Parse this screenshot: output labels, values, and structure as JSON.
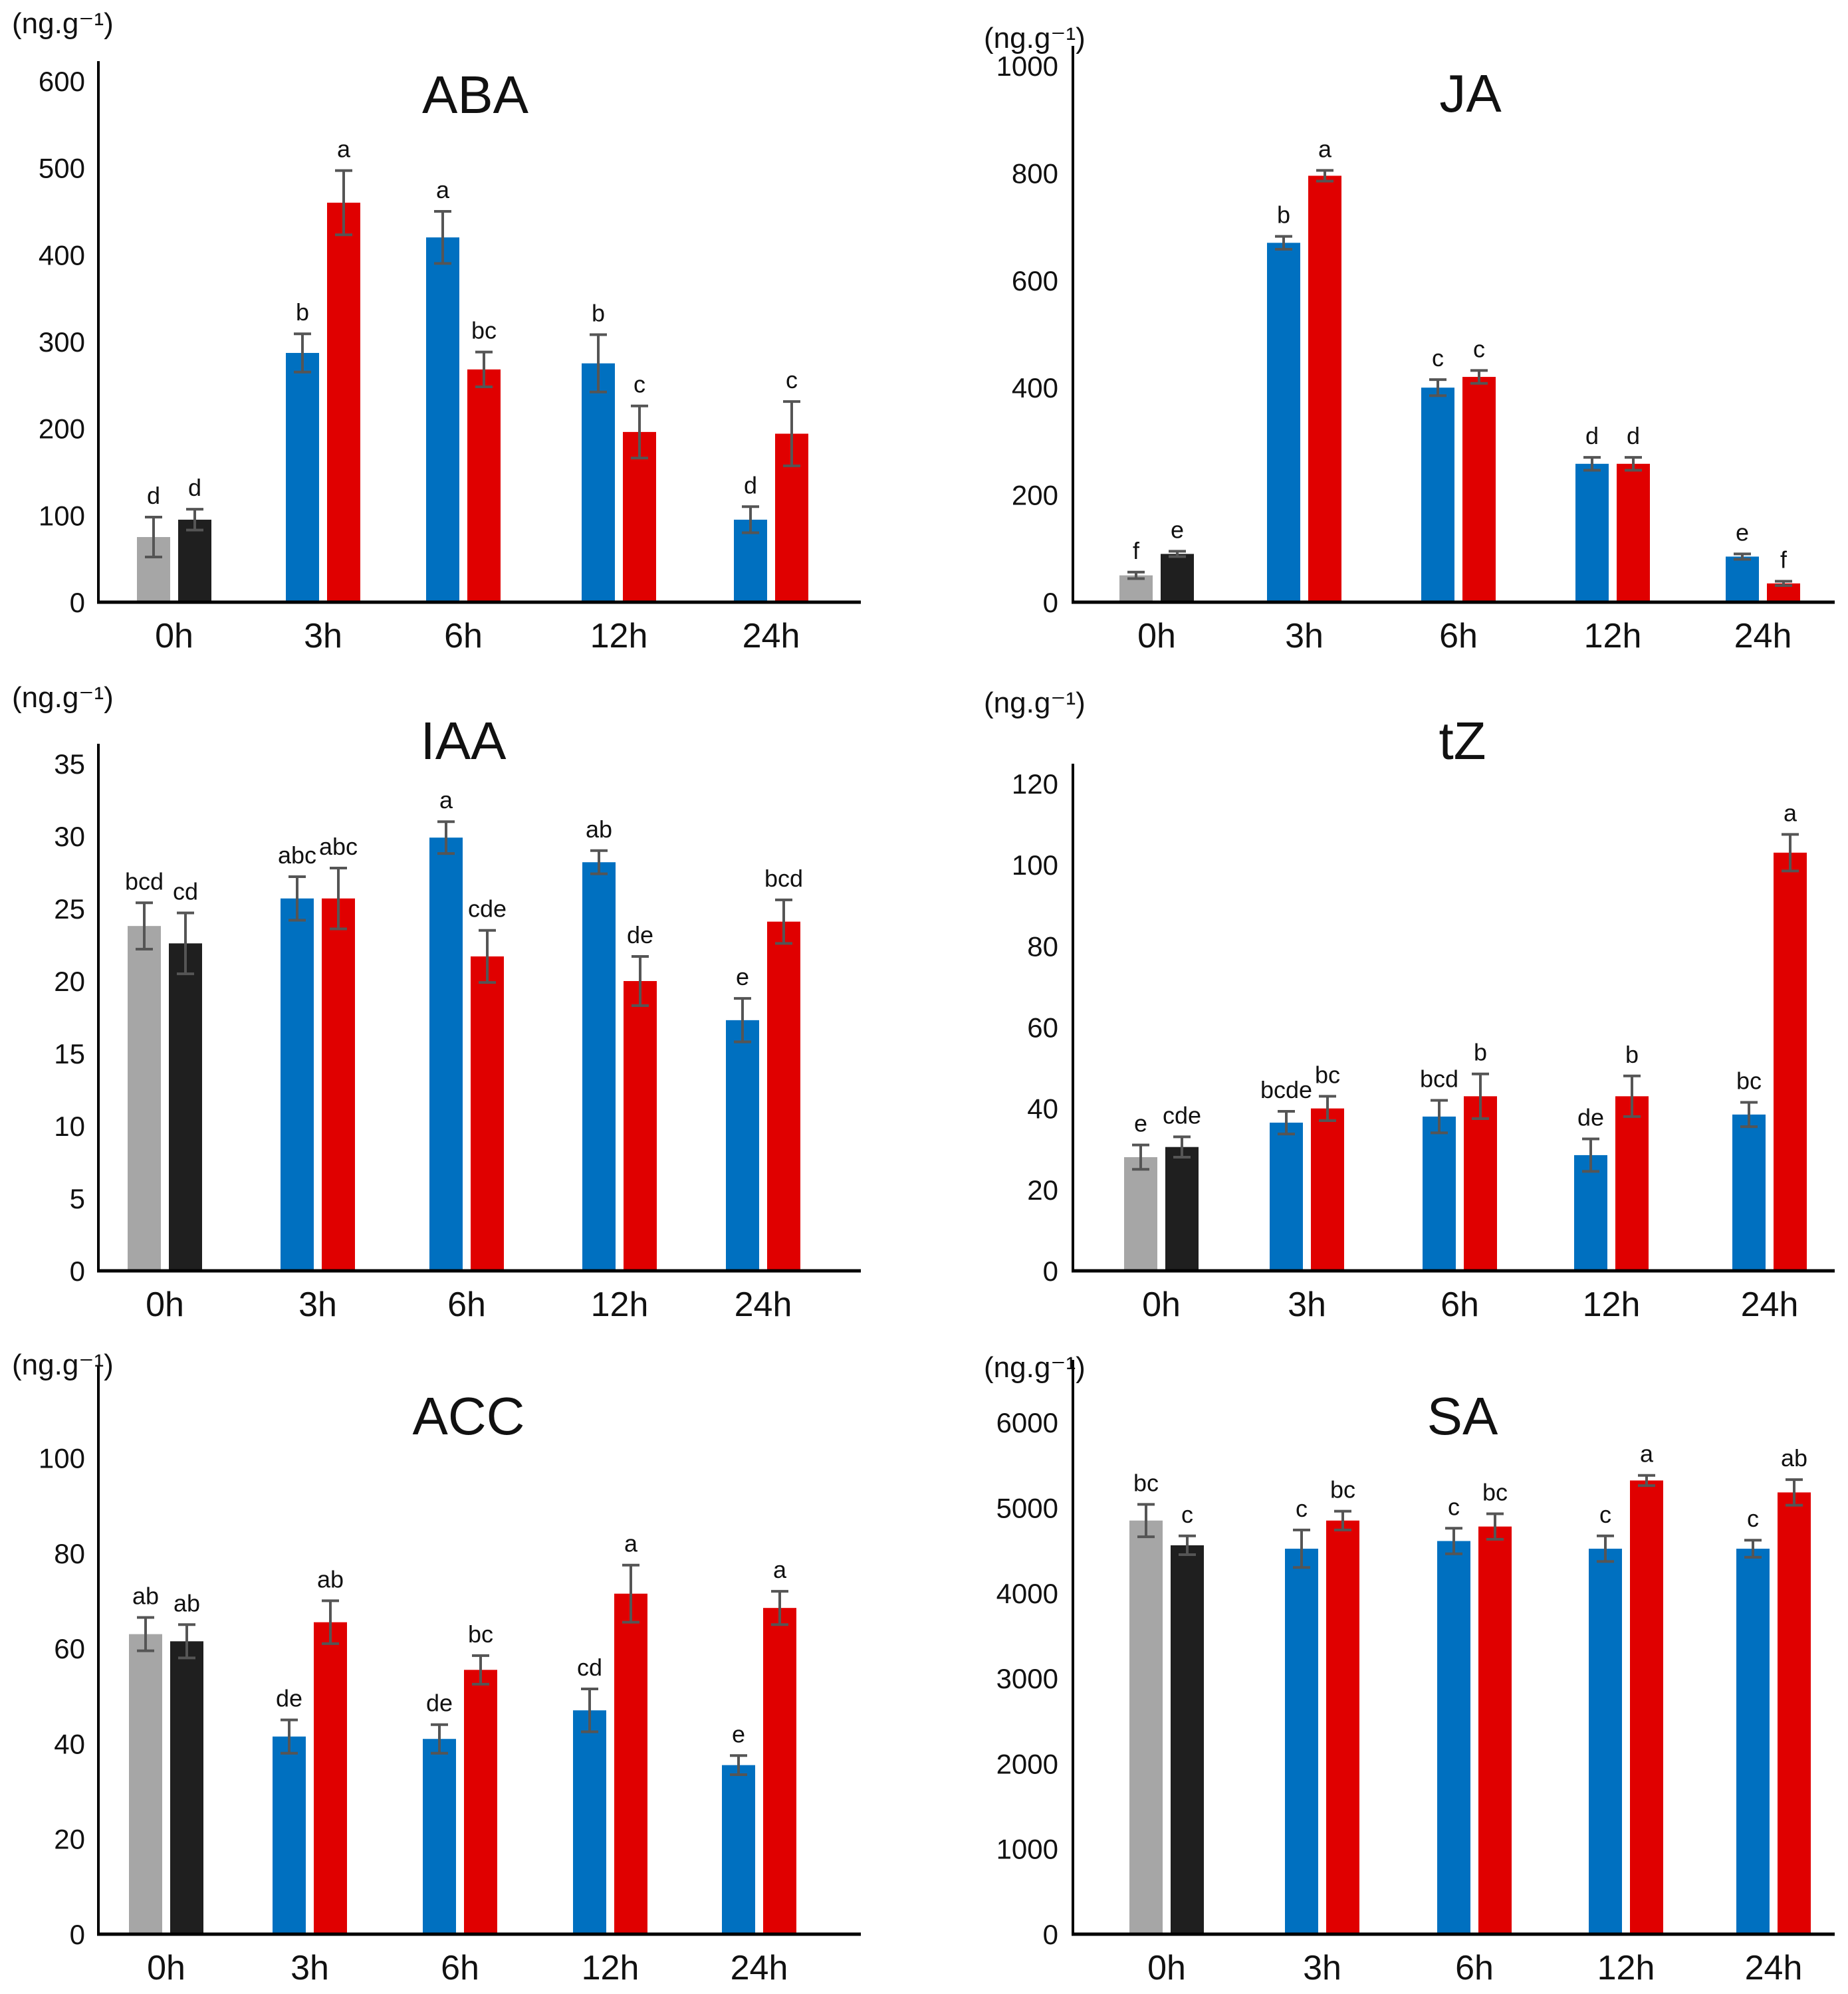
{
  "figure": {
    "colors": {
      "control_light": "#a6a6a6",
      "control_dark": "#1f1f1f",
      "blue": "#0070c0",
      "red": "#e00000",
      "error_bar": "#555555",
      "axis": "#000000"
    }
  },
  "chart_data": [
    {
      "type": "bar",
      "title": "ABA",
      "ylabel": "(ng.g⁻¹)",
      "ylim": [
        0,
        600
      ],
      "yticks": [
        0,
        100,
        200,
        300,
        400,
        500,
        600
      ],
      "categories": [
        "0h",
        "3h",
        "6h",
        "12h",
        "24h"
      ],
      "series": [
        {
          "name": "left",
          "colors": [
            "control_light",
            "blue",
            "blue",
            "blue",
            "blue"
          ],
          "values": [
            75,
            287,
            420,
            275,
            95
          ],
          "errors": [
            23,
            22,
            30,
            33,
            15
          ],
          "letters": [
            "d",
            "b",
            "a",
            "b",
            "d"
          ]
        },
        {
          "name": "right",
          "colors": [
            "control_dark",
            "red",
            "red",
            "red",
            "red"
          ],
          "values": [
            95,
            460,
            268,
            196,
            194
          ],
          "errors": [
            12,
            37,
            20,
            30,
            37
          ],
          "letters": [
            "d",
            "a",
            "bc",
            "c",
            "c"
          ]
        }
      ]
    },
    {
      "type": "bar",
      "title": "JA",
      "ylabel": "(ng.g⁻¹)",
      "ylim": [
        0,
        1000
      ],
      "yticks": [
        0,
        200,
        400,
        600,
        800,
        1000
      ],
      "categories": [
        "0h",
        "3h",
        "6h",
        "12h",
        "24h"
      ],
      "series": [
        {
          "name": "left",
          "colors": [
            "control_light",
            "blue",
            "blue",
            "blue",
            "blue"
          ],
          "values": [
            50,
            670,
            400,
            258,
            85
          ],
          "errors": [
            6,
            12,
            15,
            12,
            5
          ],
          "letters": [
            "f",
            "b",
            "c",
            "d",
            "e"
          ]
        },
        {
          "name": "right",
          "colors": [
            "control_dark",
            "red",
            "red",
            "red",
            "red"
          ],
          "values": [
            90,
            795,
            420,
            258,
            35
          ],
          "errors": [
            5,
            10,
            12,
            12,
            4
          ],
          "letters": [
            "e",
            "a",
            "c",
            "d",
            "f"
          ]
        }
      ]
    },
    {
      "type": "bar",
      "title": "IAA",
      "ylabel": "(ng.g⁻¹)",
      "ylim": [
        0,
        35
      ],
      "yticks": [
        0,
        5,
        10,
        15,
        20,
        25,
        30,
        35
      ],
      "categories": [
        "0h",
        "3h",
        "6h",
        "12h",
        "24h"
      ],
      "series": [
        {
          "name": "left",
          "colors": [
            "control_light",
            "blue",
            "blue",
            "blue",
            "blue"
          ],
          "values": [
            23.8,
            25.7,
            29.9,
            28.2,
            17.3
          ],
          "errors": [
            1.6,
            1.5,
            1.1,
            0.8,
            1.5
          ],
          "letters": [
            "bcd",
            "abc",
            "a",
            "ab",
            "e"
          ]
        },
        {
          "name": "right",
          "colors": [
            "control_dark",
            "red",
            "red",
            "red",
            "red"
          ],
          "values": [
            22.6,
            25.7,
            21.7,
            20.0,
            24.1
          ],
          "errors": [
            2.1,
            2.1,
            1.8,
            1.7,
            1.5
          ],
          "letters": [
            "cd",
            "abc",
            "cde",
            "de",
            "bcd"
          ]
        }
      ]
    },
    {
      "type": "bar",
      "title": "tZ",
      "ylabel": "(ng.g⁻¹)",
      "ylim": [
        0,
        120
      ],
      "yticks": [
        0,
        20,
        40,
        60,
        80,
        100,
        120
      ],
      "categories": [
        "0h",
        "3h",
        "6h",
        "12h",
        "24h"
      ],
      "series": [
        {
          "name": "left",
          "colors": [
            "control_light",
            "blue",
            "blue",
            "blue",
            "blue"
          ],
          "values": [
            28,
            36.5,
            38,
            28.5,
            38.5
          ],
          "errors": [
            3,
            2.8,
            4,
            4,
            3
          ],
          "letters": [
            "e",
            "bcde",
            "bcd",
            "de",
            "bc"
          ]
        },
        {
          "name": "right",
          "colors": [
            "control_dark",
            "red",
            "red",
            "red",
            "red"
          ],
          "values": [
            30.5,
            40,
            43,
            43,
            103
          ],
          "errors": [
            2.5,
            3,
            5.5,
            5,
            4.5
          ],
          "letters": [
            "cde",
            "bc",
            "b",
            "b",
            "a"
          ]
        }
      ]
    },
    {
      "type": "bar",
      "title": "ACC",
      "ylabel": "(ng.g⁻¹)",
      "ylim": [
        0,
        115
      ],
      "yticks": [
        0,
        20,
        40,
        60,
        80,
        100
      ],
      "categories": [
        "0h",
        "3h",
        "6h",
        "12h",
        "24h"
      ],
      "series": [
        {
          "name": "left",
          "colors": [
            "control_light",
            "blue",
            "blue",
            "blue",
            "blue"
          ],
          "values": [
            63,
            41.5,
            41,
            47,
            35.5
          ],
          "errors": [
            3.5,
            3.5,
            3,
            4.5,
            2
          ],
          "letters": [
            "ab",
            "de",
            "de",
            "cd",
            "e"
          ]
        },
        {
          "name": "right",
          "colors": [
            "control_dark",
            "red",
            "red",
            "red",
            "red"
          ],
          "values": [
            61.5,
            65.5,
            55.5,
            71.5,
            68.5
          ],
          "errors": [
            3.5,
            4.5,
            3,
            6,
            3.5
          ],
          "letters": [
            "ab",
            "ab",
            "bc",
            "a",
            "a"
          ]
        }
      ]
    },
    {
      "type": "bar",
      "title": "SA",
      "ylabel": "(ng.g⁻¹)",
      "ylim": [
        0,
        6500
      ],
      "yticks": [
        0,
        1000,
        2000,
        3000,
        4000,
        5000,
        6000
      ],
      "categories": [
        "0h",
        "3h",
        "6h",
        "12h",
        "24h"
      ],
      "series": [
        {
          "name": "left",
          "colors": [
            "control_light",
            "blue",
            "blue",
            "blue",
            "blue"
          ],
          "values": [
            4850,
            4520,
            4610,
            4520,
            4520
          ],
          "errors": [
            190,
            220,
            150,
            150,
            100
          ],
          "letters": [
            "bc",
            "c",
            "c",
            "c",
            "c"
          ]
        },
        {
          "name": "right",
          "colors": [
            "control_dark",
            "red",
            "red",
            "red",
            "red"
          ],
          "values": [
            4560,
            4850,
            4780,
            5320,
            5180
          ],
          "errors": [
            110,
            110,
            150,
            60,
            150
          ],
          "letters": [
            "c",
            "bc",
            "bc",
            "a",
            "ab"
          ]
        }
      ]
    }
  ]
}
